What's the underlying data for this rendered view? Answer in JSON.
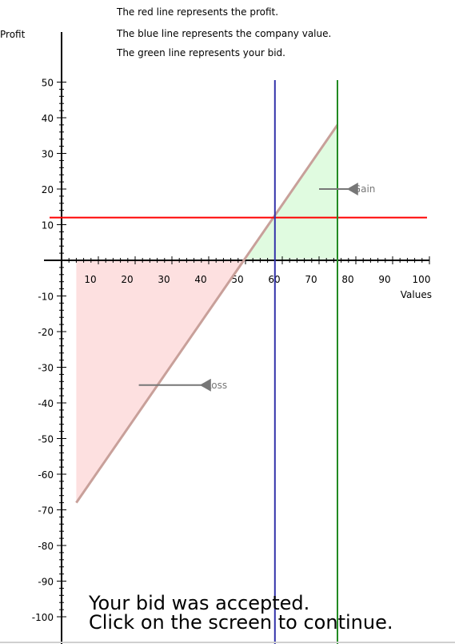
{
  "legend": {
    "line1": "The red line represents the profit.",
    "line2": "The blue line represents the company value.",
    "line3": "The green line represents your bid."
  },
  "message": {
    "line1": "Your bid was accepted.",
    "line2": "Click on the screen to continue."
  },
  "chart_data": {
    "type": "line",
    "xlabel": "Values",
    "ylabel": "Profit",
    "xlim": [
      0,
      100
    ],
    "ylim": [
      -100,
      50
    ],
    "x_ticks": [
      10,
      20,
      30,
      40,
      50,
      60,
      70,
      80,
      90,
      100
    ],
    "y_ticks": [
      50,
      40,
      30,
      20,
      10,
      -10,
      -20,
      -30,
      -40,
      -50,
      -60,
      -70,
      -80,
      -90,
      -100
    ],
    "colors": {
      "profit": "#ff0000",
      "company_value": "#3333aa",
      "bid": "#228b22",
      "diagonal": "#c8a09a",
      "loss_fill": "#fde0e0",
      "gain_fill": "#e0fbe0",
      "annotation": "#777777"
    },
    "profit_line": {
      "y": 12
    },
    "company_value_line": {
      "x": 58
    },
    "bid_line": {
      "x": 75
    },
    "diagonal": {
      "points": [
        [
          4,
          -68
        ],
        [
          75,
          38
        ]
      ]
    },
    "loss_region": {
      "points": [
        [
          4,
          0
        ],
        [
          4,
          -68
        ],
        [
          50,
          0
        ]
      ]
    },
    "gain_region": {
      "points": [
        [
          50,
          0
        ],
        [
          75,
          38
        ],
        [
          75,
          0
        ]
      ]
    },
    "annotations": [
      {
        "label": "Gain",
        "x": 74,
        "y": 20,
        "arrow_from_x": 78,
        "arrow_to_x": 70
      },
      {
        "label": "Loss",
        "x": 22,
        "y": -35,
        "arrow_from_x": 38,
        "arrow_to_x": 21
      }
    ]
  }
}
